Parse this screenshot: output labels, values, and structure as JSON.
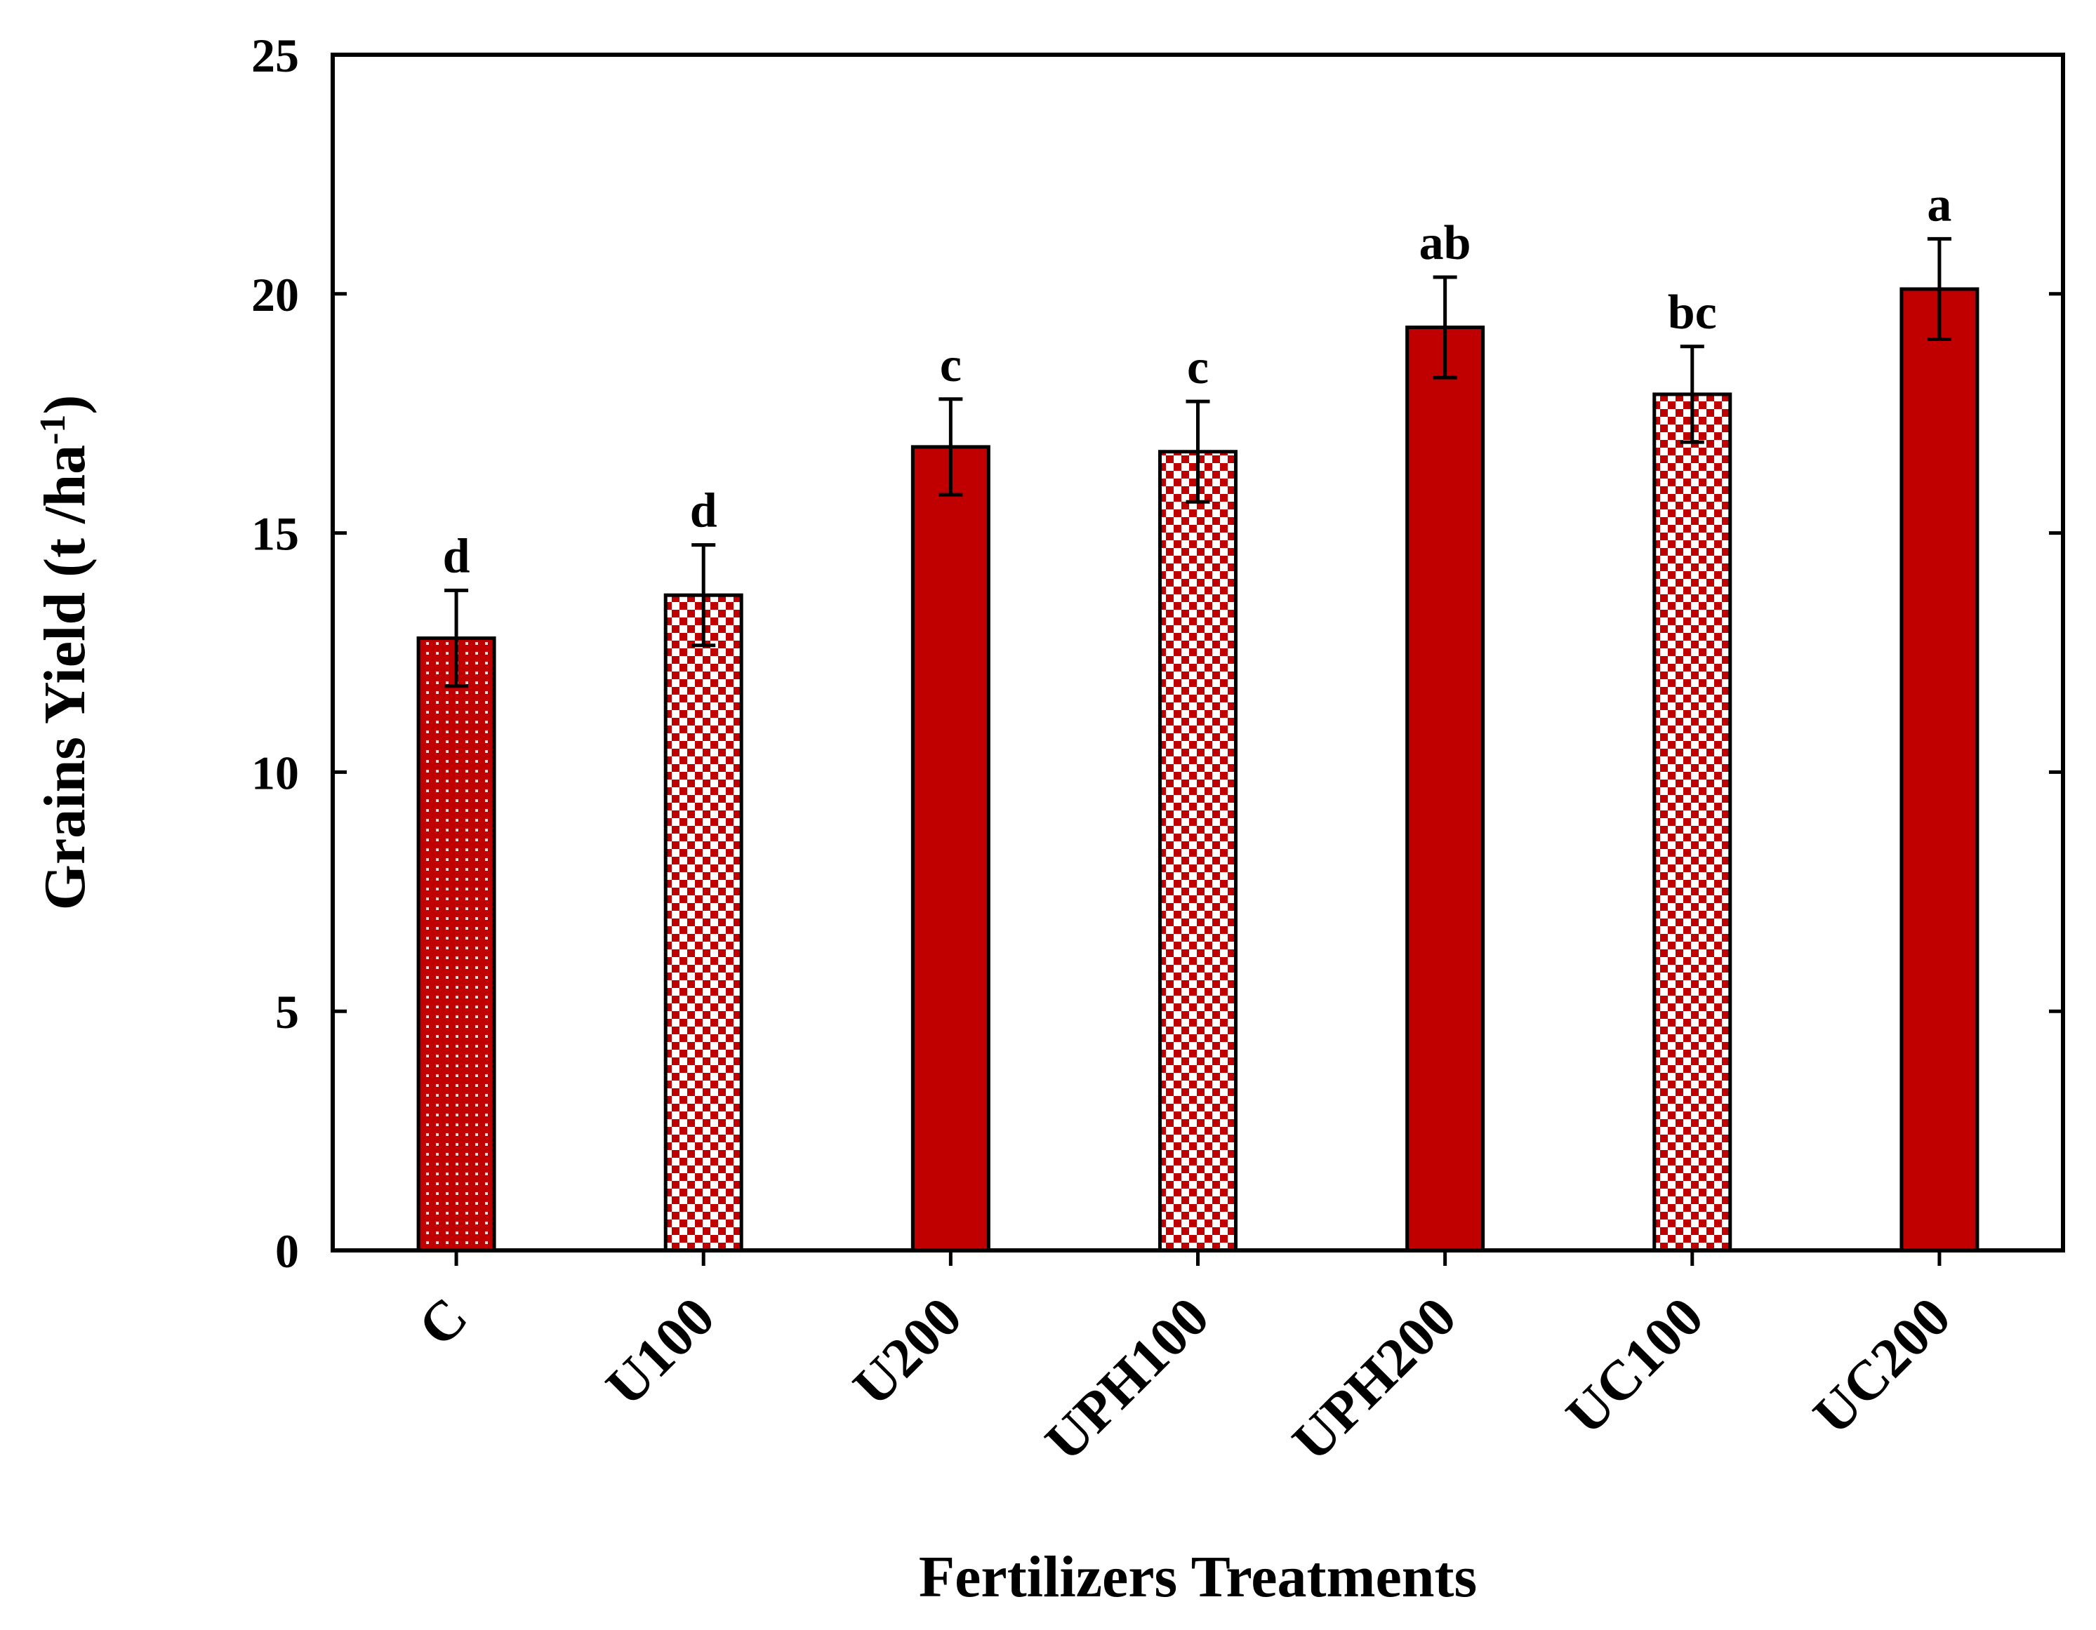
{
  "chart_data": {
    "type": "bar",
    "title": "",
    "xlabel": "Fertilizers Treatments",
    "ylabel": "Grains Yield (t /ha",
    "ylabel_superscript": "-1",
    "ylabel_close": ")",
    "ylim": [
      0,
      25
    ],
    "yticks": [
      0,
      5,
      10,
      15,
      20,
      25
    ],
    "grid": false,
    "legend": "none",
    "categories": [
      "C",
      "U100",
      "U200",
      "UPH100",
      "UPH200",
      "UC100",
      "UC200"
    ],
    "values": [
      12.8,
      13.7,
      16.8,
      16.7,
      19.3,
      17.9,
      20.1
    ],
    "errors": [
      1.0,
      1.05,
      1.0,
      1.05,
      1.05,
      1.0,
      1.05
    ],
    "significance": [
      "d",
      "d",
      "c",
      "c",
      "ab",
      "bc",
      "a"
    ],
    "fill_patterns": [
      "dotted",
      "checkered",
      "solid",
      "checkered",
      "solid",
      "checkered",
      "solid"
    ]
  },
  "colors": {
    "bar": "#c00000",
    "pattern_light": "#ffffff",
    "axis": "#000000",
    "background": "#ffffff"
  }
}
